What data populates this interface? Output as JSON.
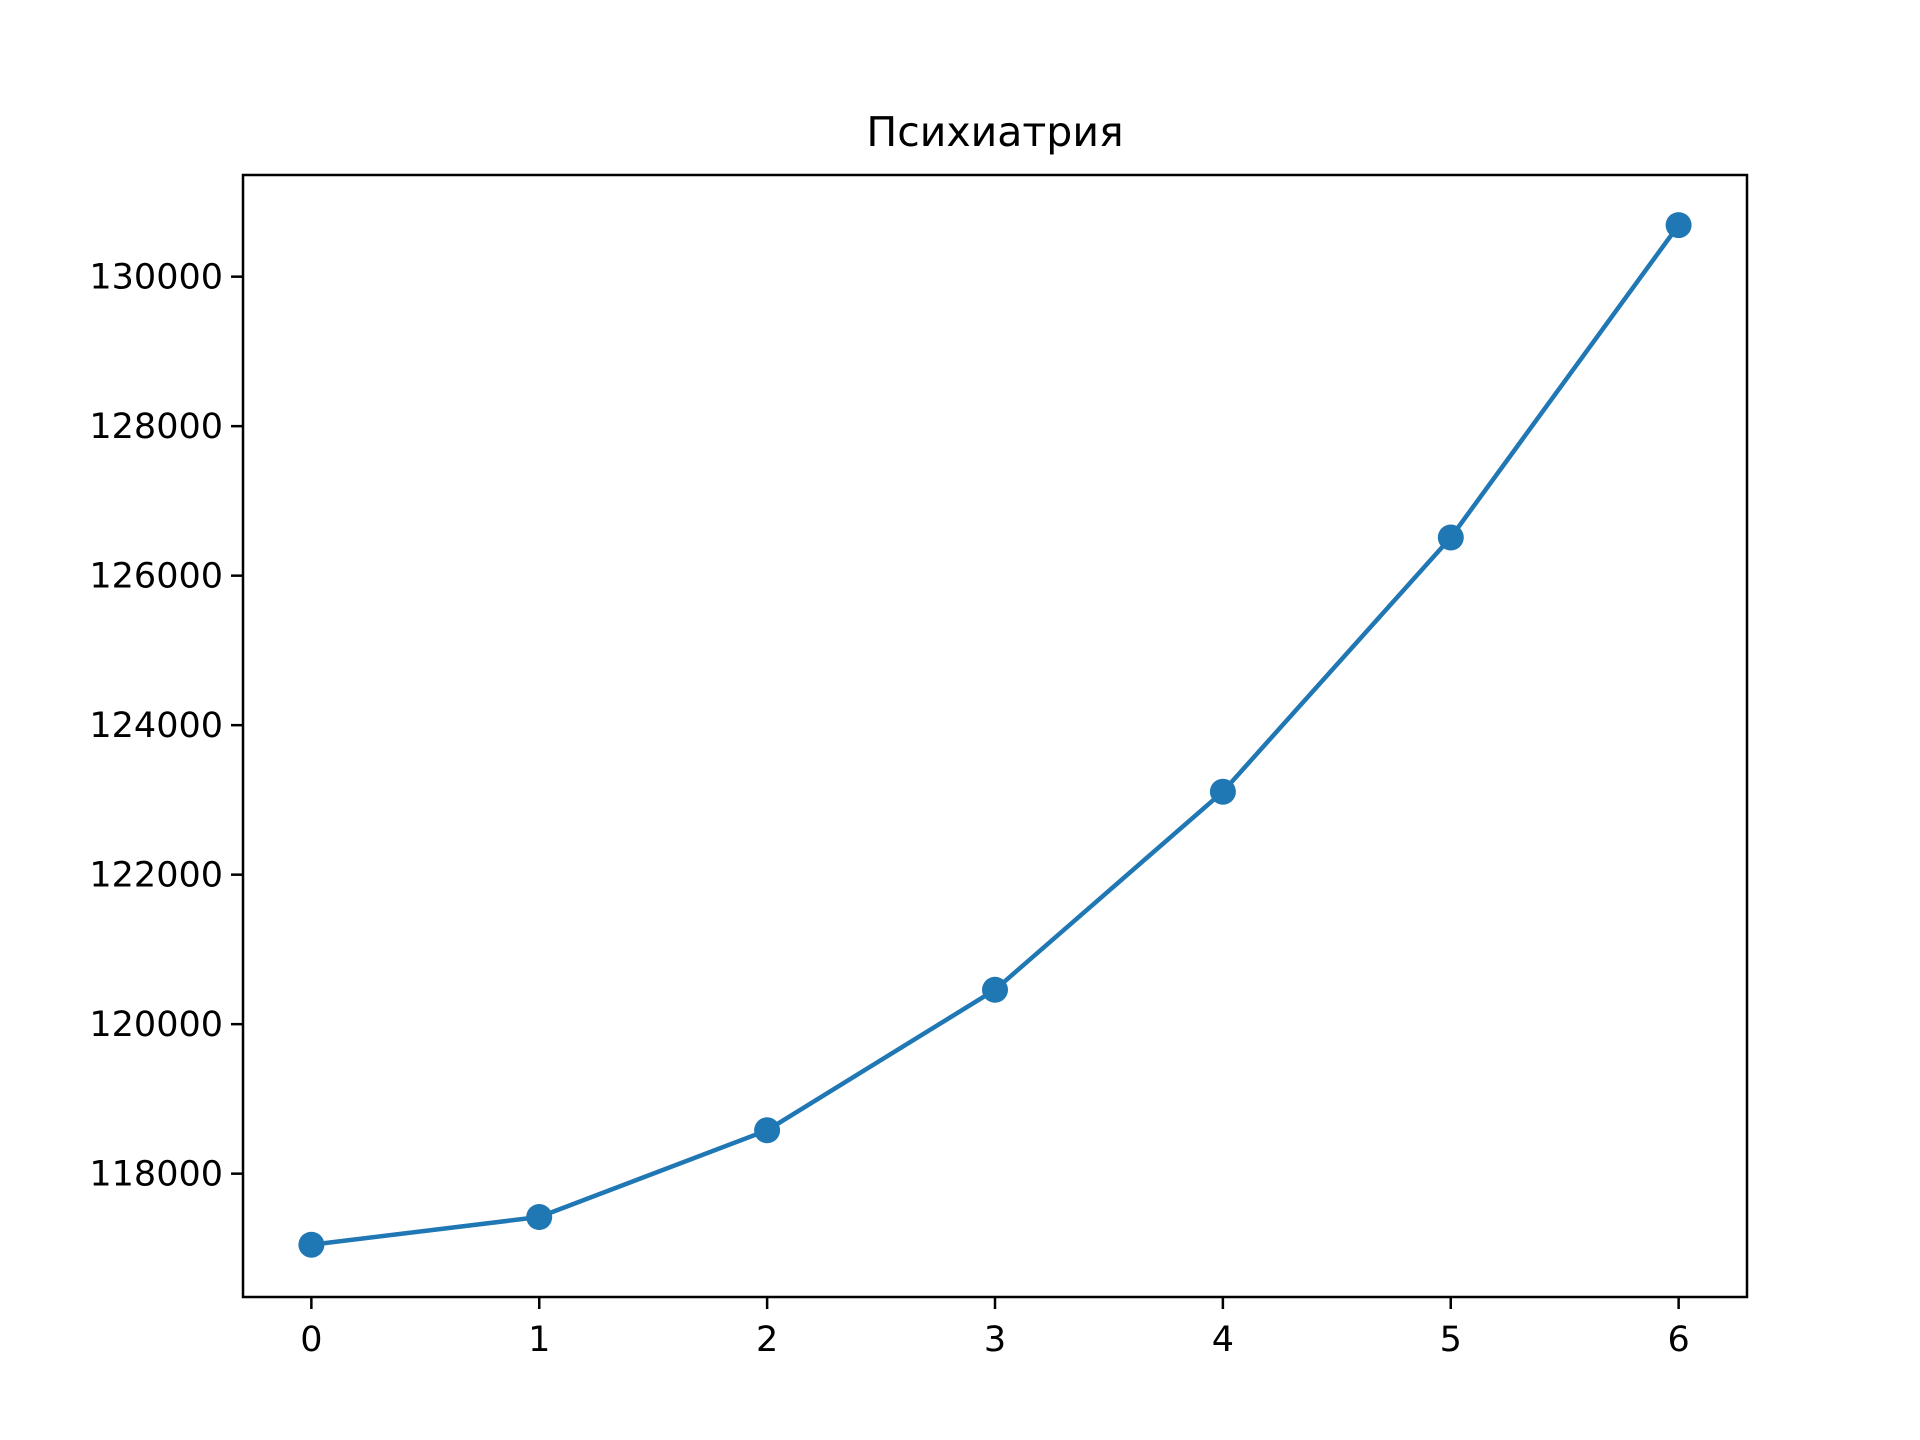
{
  "chart_data": {
    "type": "line",
    "title": "Психиатрия",
    "xlabel": "",
    "ylabel": "",
    "x": [
      0,
      1,
      2,
      3,
      4,
      5,
      6
    ],
    "series": [
      {
        "values": [
          117050,
          117420,
          118580,
          120460,
          123110,
          126510,
          130690
        ],
        "color": "#1f77b4",
        "marker": "circle"
      }
    ],
    "xlim": [
      -0.3,
      6.3
    ],
    "ylim": [
      116350,
      131360
    ],
    "xticks": [
      0,
      1,
      2,
      3,
      4,
      5,
      6
    ],
    "xtick_labels": [
      "0",
      "1",
      "2",
      "3",
      "4",
      "5",
      "6"
    ],
    "yticks": [
      118000,
      120000,
      122000,
      124000,
      126000,
      128000,
      130000
    ],
    "ytick_labels": [
      "118000",
      "120000",
      "122000",
      "124000",
      "126000",
      "128000",
      "130000"
    ],
    "grid": false,
    "legend": "none"
  }
}
